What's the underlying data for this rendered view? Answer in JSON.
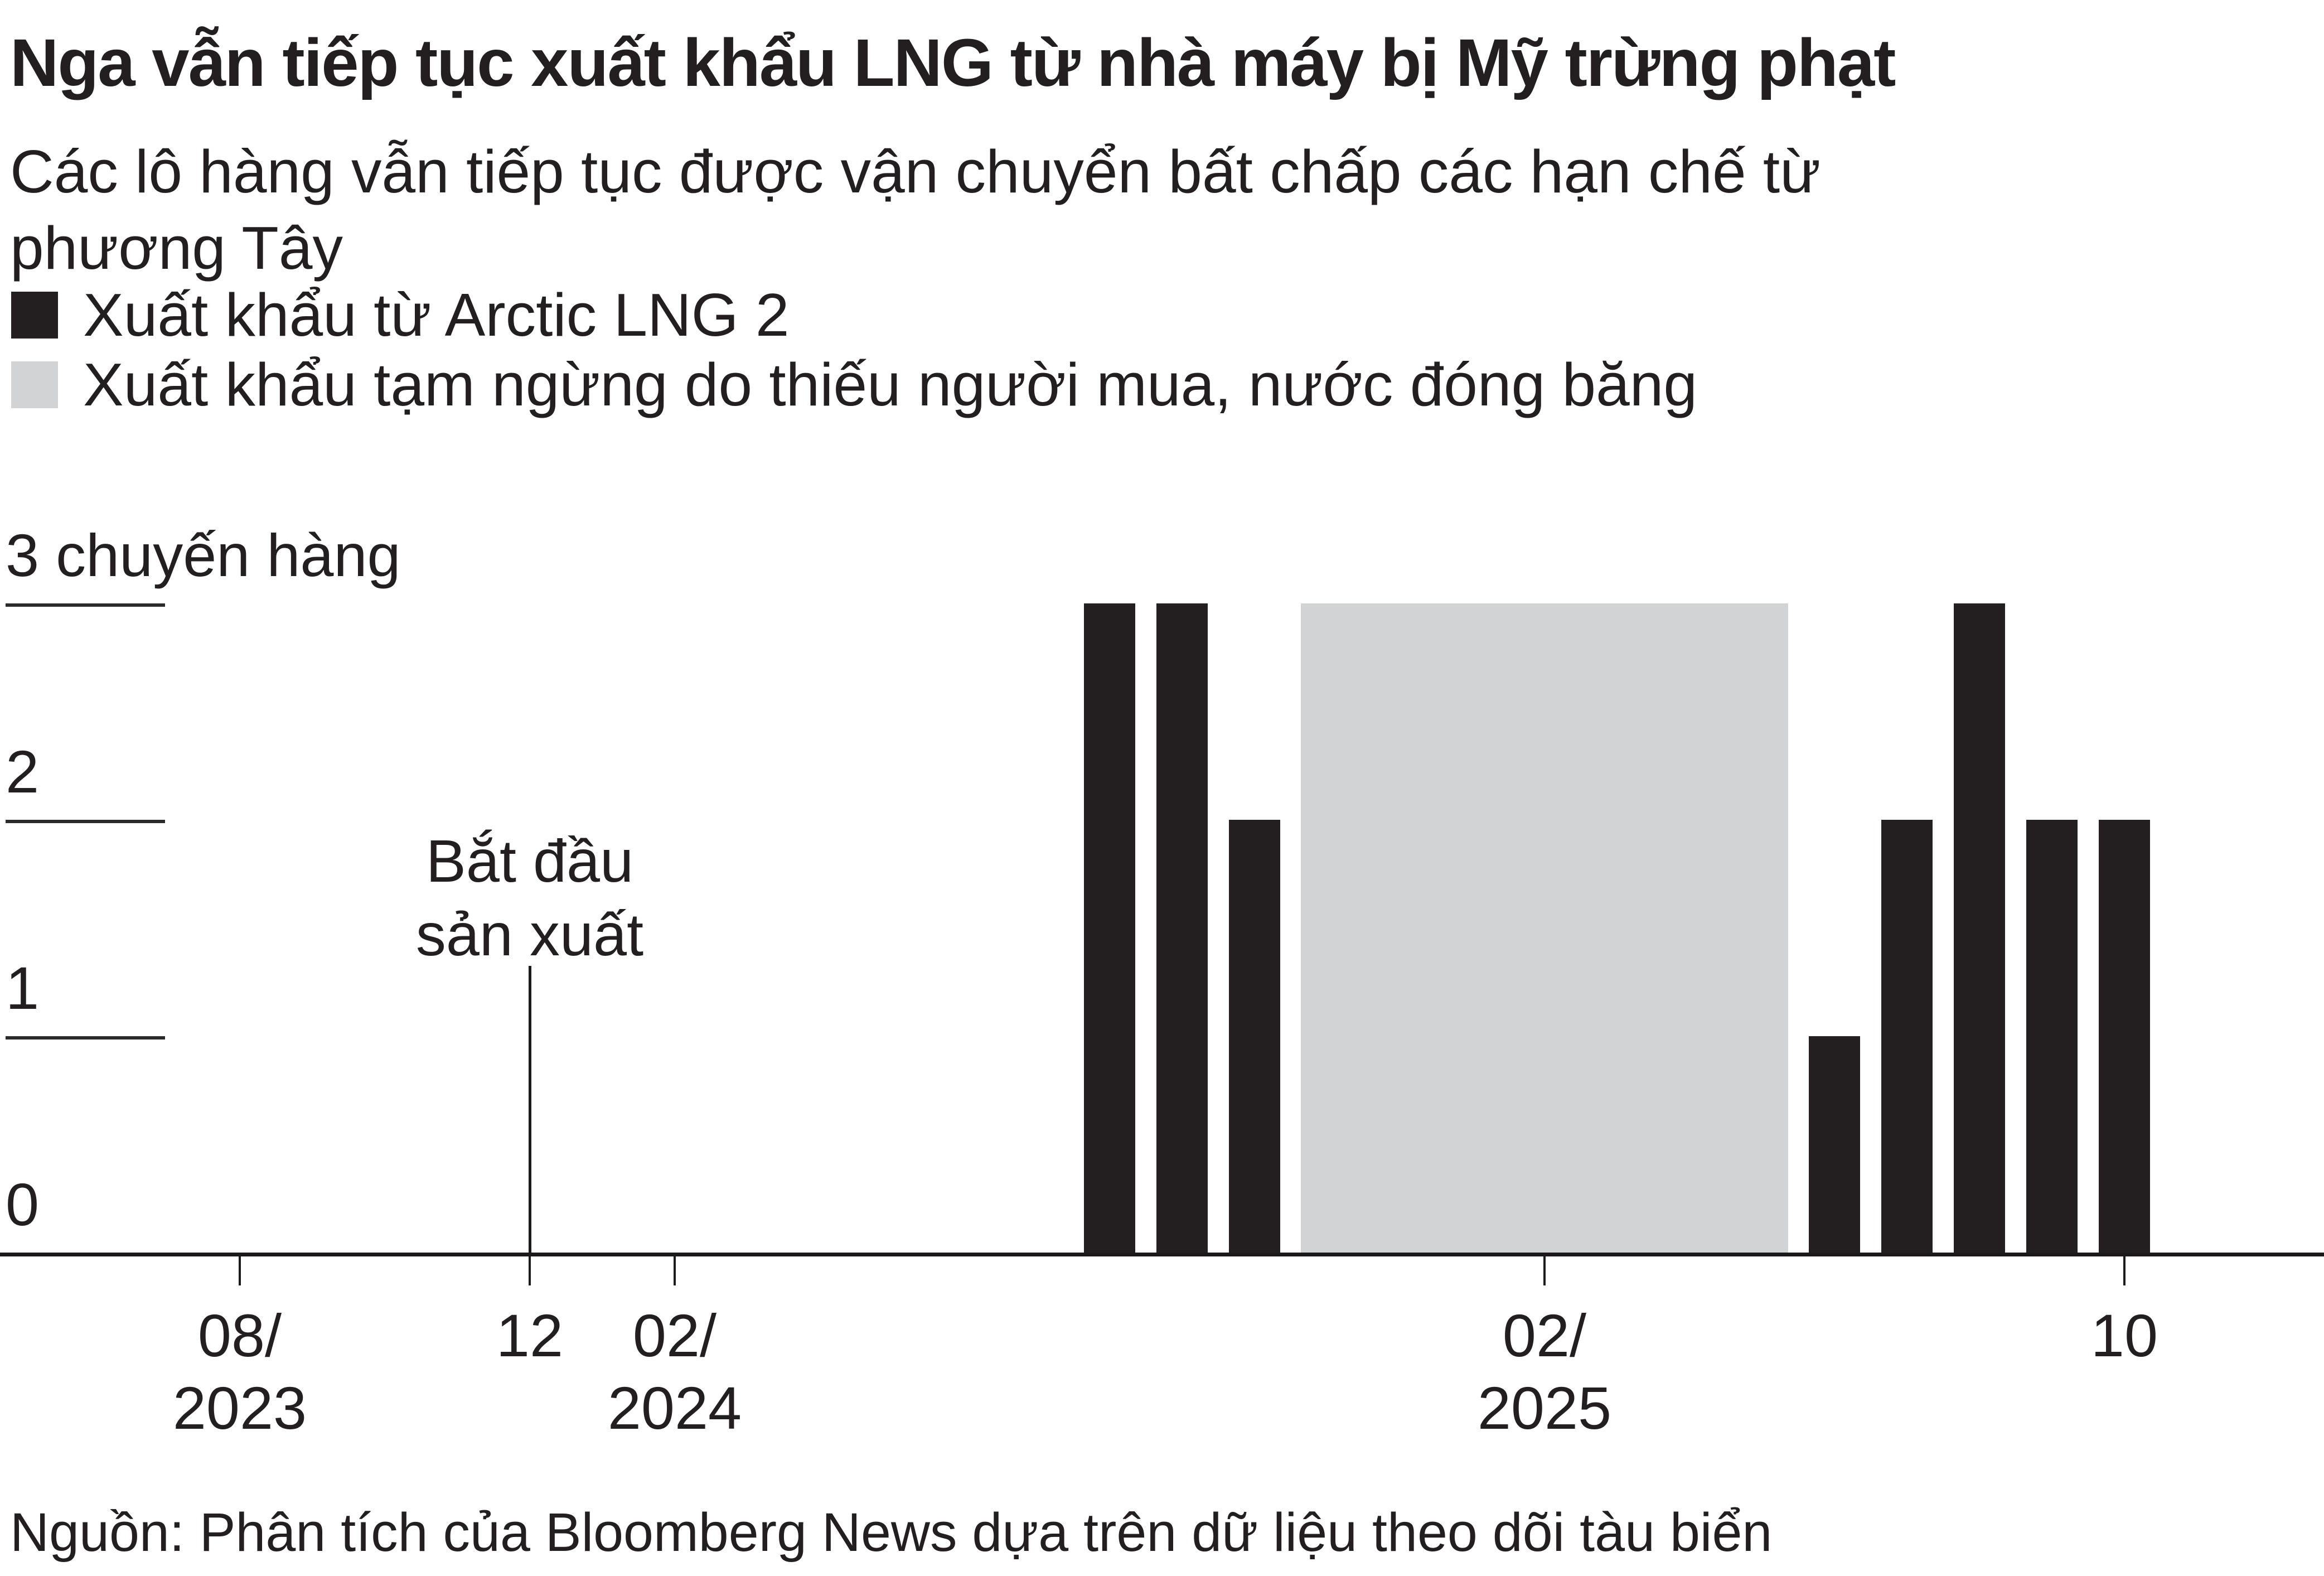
{
  "title": "Nga vẫn tiếp tục xuất khẩu LNG từ nhà máy bị Mỹ trừng phạt",
  "subtitle": {
    "line1": "Các lô hàng vẫn tiếp tục được vận chuyển bất chấp các hạn chế từ",
    "line2": "phương Tây"
  },
  "legend": {
    "items": [
      {
        "label": "Xuất khẩu từ Arctic LNG 2",
        "color": "#231f20"
      },
      {
        "label": "Xuất khẩu tạm ngừng do thiếu người mua, nước đóng băng",
        "color": "#d1d3d4"
      }
    ]
  },
  "y_axis": {
    "top_label": "3 chuyến hàng",
    "tick_labels": [
      "2",
      "1",
      "0"
    ],
    "max": 3
  },
  "x_axis": {
    "ticks": [
      {
        "month": "2023-08",
        "lines": [
          "08/",
          "2023"
        ]
      },
      {
        "month": "2023-12",
        "lines": [
          "12"
        ]
      },
      {
        "month": "2024-02",
        "lines": [
          "02/",
          "2024"
        ]
      },
      {
        "month": "2025-02",
        "lines": [
          "02/",
          "2025"
        ]
      },
      {
        "month": "2025-10",
        "lines": [
          "10"
        ]
      }
    ]
  },
  "annotation": {
    "line1": "Bắt đầu",
    "line2": "sản xuất",
    "month": "2023-12"
  },
  "source": "Nguồn: Phân tích của Bloomberg News dựa trên dữ liệu theo dõi tàu biển",
  "colors": {
    "bar": "#231f20",
    "pause": "#d1d3d4",
    "text": "#231f20",
    "axis": "#1d1a1b",
    "gridline": "#2b2b2b",
    "background": "#ffffff"
  },
  "chart_data": {
    "type": "bar",
    "title": "Nga vẫn tiếp tục xuất khẩu LNG từ nhà máy bị Mỹ trừng phạt",
    "subtitle": "Các lô hàng vẫn tiếp tục được vận chuyển bất chấp các hạn chế từ phương Tây",
    "ylabel": "chuyến hàng",
    "ylim": [
      0,
      3
    ],
    "x_unit": "month",
    "x_range": [
      "2023-07",
      "2025-12"
    ],
    "series": [
      {
        "name": "Xuất khẩu từ Arctic LNG 2",
        "points": [
          {
            "month": "2024-08",
            "value": 3
          },
          {
            "month": "2024-09",
            "value": 3
          },
          {
            "month": "2024-10",
            "value": 2
          },
          {
            "month": "2025-06",
            "value": 1
          },
          {
            "month": "2025-07",
            "value": 2
          },
          {
            "month": "2025-08",
            "value": 3
          },
          {
            "month": "2025-09",
            "value": 2
          },
          {
            "month": "2025-10",
            "value": 2
          }
        ]
      }
    ],
    "pause_region": {
      "from": "2024-11",
      "to": "2025-05",
      "value_span": 3,
      "label": "Xuất khẩu tạm ngừng do thiếu người mua, nước đóng băng"
    },
    "annotations": [
      {
        "text": "Bắt đầu sản xuất",
        "month": "2023-12"
      }
    ],
    "x_tick_labels": [
      "08/2023",
      "12",
      "02/2024",
      "02/2025",
      "10"
    ],
    "legend_position": "top-left",
    "grid": "short-left-stub-gridlines"
  }
}
